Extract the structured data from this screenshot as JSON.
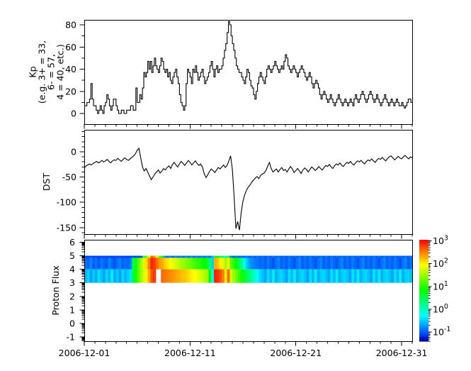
{
  "figure": {
    "background": "#ffffff",
    "line_color": "#000000",
    "x_axis": {
      "tick_labels": [
        "2006-12-01",
        "2006-12-11",
        "2006-12-21",
        "2006-12-31"
      ],
      "major_tick_days": [
        0,
        10,
        20,
        30
      ],
      "minor_tick_every_days": 1,
      "range_days": [
        0,
        31
      ]
    },
    "chart_data": [
      {
        "type": "line",
        "style": "step",
        "ylabel_lines": [
          "Kp",
          "(e.g. 3+ = 33,",
          "6- = 57,",
          "4 = 40, etc.)"
        ],
        "yticks": [
          0,
          20,
          40,
          60,
          80
        ],
        "y_minor_step": 10,
        "ylim": [
          -9.6,
          84.5
        ],
        "hours_per_sample": 3,
        "values": [
          7,
          7,
          10,
          10,
          13,
          27,
          13,
          7,
          7,
          3,
          0,
          3,
          7,
          3,
          0,
          7,
          10,
          17,
          13,
          7,
          3,
          7,
          13,
          13,
          7,
          3,
          0,
          0,
          3,
          3,
          0,
          0,
          3,
          3,
          3,
          7,
          7,
          3,
          3,
          23,
          10,
          10,
          17,
          13,
          23,
          37,
          33,
          37,
          47,
          40,
          47,
          37,
          43,
          50,
          43,
          40,
          37,
          43,
          50,
          47,
          40,
          37,
          40,
          33,
          37,
          30,
          27,
          33,
          37,
          40,
          33,
          27,
          17,
          10,
          7,
          3,
          7,
          27,
          40,
          37,
          33,
          27,
          40,
          37,
          43,
          37,
          30,
          33,
          37,
          40,
          33,
          27,
          30,
          33,
          37,
          43,
          47,
          40,
          33,
          40,
          43,
          37,
          40,
          40,
          43,
          50,
          57,
          63,
          73,
          83,
          80,
          70,
          63,
          57,
          50,
          43,
          40,
          37,
          37,
          33,
          30,
          27,
          33,
          40,
          37,
          30,
          25,
          23,
          17,
          13,
          20,
          27,
          33,
          37,
          33,
          30,
          27,
          33,
          40,
          43,
          40,
          37,
          40,
          43,
          47,
          43,
          40,
          37,
          40,
          43,
          40,
          47,
          53,
          50,
          43,
          40,
          37,
          40,
          43,
          40,
          37,
          33,
          37,
          40,
          43,
          40,
          37,
          33,
          30,
          33,
          37,
          33,
          27,
          23,
          27,
          30,
          27,
          23,
          17,
          13,
          17,
          20,
          17,
          13,
          10,
          13,
          17,
          13,
          10,
          7,
          10,
          13,
          17,
          13,
          10,
          7,
          10,
          13,
          10,
          7,
          10,
          13,
          10,
          7,
          13,
          17,
          13,
          10,
          13,
          17,
          20,
          17,
          13,
          10,
          13,
          17,
          20,
          17,
          13,
          10,
          13,
          17,
          13,
          10,
          7,
          10,
          13,
          17,
          13,
          10,
          7,
          10,
          13,
          10,
          7,
          10,
          13,
          10,
          7,
          7,
          10,
          7,
          5,
          7,
          10,
          13,
          13,
          10
        ]
      },
      {
        "type": "line",
        "style": "linear",
        "ylabel": "DST",
        "yticks": [
          0,
          -50,
          -100,
          -150
        ],
        "y_minor_step": 10,
        "ylim": [
          -163,
          43.5
        ],
        "hours_per_sample": 4,
        "values": [
          -32,
          -28,
          -26,
          -24,
          -26,
          -23,
          -21,
          -19,
          -22,
          -20,
          -17,
          -20,
          -18,
          -15,
          -19,
          -22,
          -18,
          -16,
          -17,
          -13,
          -16,
          -19,
          -15,
          -12,
          -15,
          -17,
          -14,
          -11,
          -8,
          -4,
          3,
          7,
          -12,
          -30,
          -38,
          -33,
          -40,
          -48,
          -55,
          -50,
          -44,
          -40,
          -36,
          -42,
          -38,
          -33,
          -36,
          -31,
          -28,
          -33,
          -25,
          -21,
          -26,
          -30,
          -24,
          -19,
          -23,
          -27,
          -22,
          -17,
          -21,
          -26,
          -22,
          -18,
          -23,
          -27,
          -24,
          -30,
          -43,
          -51,
          -46,
          -39,
          -34,
          -37,
          -41,
          -36,
          -31,
          -34,
          -30,
          -26,
          -31,
          -27,
          -18,
          -8,
          -35,
          -90,
          -152,
          -138,
          -155,
          -120,
          -98,
          -85,
          -76,
          -70,
          -66,
          -60,
          -56,
          -52,
          -49,
          -53,
          -47,
          -44,
          -42,
          -37,
          -29,
          -21,
          -33,
          -40,
          -37,
          -34,
          -40,
          -35,
          -31,
          -37,
          -35,
          -40,
          -34,
          -29,
          -34,
          -41,
          -37,
          -33,
          -38,
          -43,
          -36,
          -32,
          -35,
          -40,
          -35,
          -30,
          -33,
          -37,
          -34,
          -29,
          -33,
          -36,
          -31,
          -27,
          -29,
          -25,
          -30,
          -33,
          -27,
          -24,
          -26,
          -22,
          -27,
          -29,
          -24,
          -21,
          -23,
          -19,
          -24,
          -26,
          -21,
          -18,
          -20,
          -17,
          -21,
          -24,
          -19,
          -16,
          -18,
          -14,
          -18,
          -21,
          -16,
          -13,
          -15,
          -11,
          -15,
          -18,
          -13,
          -10,
          -8,
          -12,
          -16,
          -13,
          -9,
          -12,
          -14,
          -10,
          -7,
          -11,
          -14,
          -10,
          -12
        ]
      },
      {
        "type": "heatmap",
        "ylabel": "Proton Flux",
        "yticks": [
          -1,
          0,
          1,
          2,
          3,
          4,
          5,
          6
        ],
        "log_minor_ticks": true,
        "ylim": [
          -1.32,
          6.18
        ],
        "columns": 124,
        "hours_per_sample": 6,
        "value_scale": "log10_flux",
        "rows": [
          {
            "y0": 4,
            "y1": 5,
            "values": [
              -0.9,
              -1.0,
              -0.8,
              -1.0,
              -0.9,
              -1.05,
              -0.85,
              -0.95,
              -1.0,
              -0.8,
              -0.95,
              -1.05,
              -0.9,
              -0.8,
              -1.0,
              -0.9,
              -0.95,
              -0.85,
              0.5,
              0.9,
              1.2,
              1.5,
              1.8,
              2.1,
              2.5,
              2.9,
              2.8,
              2.6,
              2.4,
              2.3,
              2.15,
              2.05,
              1.95,
              1.85,
              1.75,
              1.65,
              1.55,
              1.5,
              1.4,
              1.3,
              1.25,
              1.15,
              1.05,
              1.0,
              0.9,
              0.8,
              0.7,
              0.3,
              -0.5,
              2.3,
              2.2,
              2.0,
              1.8,
              1.5,
              2.0,
              1.2,
              1.0,
              0.8,
              0.5,
              0.2,
              -0.2,
              -0.5,
              -0.7,
              -0.8,
              -0.85,
              -0.9,
              -0.95,
              -0.9,
              -1.0,
              -0.85,
              -0.95,
              -1.05,
              -0.9,
              -0.8,
              -1.0,
              -0.9,
              -1.0,
              -0.85,
              -0.95,
              -1.05,
              -0.9,
              -0.8,
              -1.0,
              -0.9,
              -1.0,
              -0.85,
              -0.95,
              -1.05,
              -0.9,
              -0.8,
              -1.0,
              -0.9,
              -1.0,
              -0.85,
              -0.95,
              -1.05,
              -0.9,
              -0.8,
              -1.0,
              -0.9,
              -1.0,
              -0.85,
              -0.95,
              -1.05,
              -0.9,
              -0.8,
              -1.0,
              -0.9,
              -1.0,
              -0.85,
              -0.95,
              -1.05,
              -0.9,
              -0.8,
              -1.0,
              -0.9,
              -1.0,
              -0.85,
              -0.95,
              -1.05,
              -0.9,
              -0.8,
              -1.0,
              -0.9
            ]
          },
          {
            "y0": 3,
            "y1": 4,
            "values": [
              -0.6,
              -0.45,
              -0.7,
              -0.5,
              -0.65,
              -0.4,
              -0.55,
              -0.7,
              -0.45,
              -0.6,
              -0.35,
              -0.65,
              -0.5,
              -0.7,
              -0.45,
              -0.6,
              -0.5,
              -0.4,
              0.6,
              0.9,
              1.2,
              1.5,
              1.8,
              2.0,
              2.3,
              2.7,
              2.8,
              null,
              null,
              2.6,
              2.55,
              2.5,
              2.45,
              2.4,
              2.35,
              2.3,
              2.25,
              2.2,
              2.15,
              2.1,
              2.0,
              1.95,
              1.9,
              1.8,
              1.7,
              1.6,
              1.5,
              0.8,
              -0.3,
              2.9,
              2.85,
              2.7,
              2.5,
              2.0,
              2.6,
              1.7,
              1.5,
              1.3,
              1.1,
              0.9,
              0.7,
              0.5,
              0.3,
              0.1,
              -0.1,
              -0.3,
              -0.45,
              -0.55,
              -0.7,
              -0.4,
              -0.6,
              -0.35,
              -0.65,
              -0.5,
              -0.45,
              -0.55,
              -0.7,
              -0.4,
              -0.6,
              -0.35,
              -0.65,
              -0.5,
              -0.45,
              -0.55,
              -0.7,
              -0.4,
              -0.6,
              -0.35,
              -0.65,
              -0.5,
              -0.45,
              -0.55,
              -0.7,
              -0.4,
              -0.6,
              -0.35,
              -0.65,
              -0.5,
              -0.45,
              -0.55,
              -0.7,
              -0.4,
              -0.6,
              -0.35,
              -0.65,
              -0.5,
              -0.45,
              -0.55,
              -0.7,
              -0.4,
              -0.6,
              -0.35,
              -0.65,
              -0.5,
              -0.45,
              -0.55,
              -0.7,
              -0.4,
              -0.6,
              -0.35,
              -0.65,
              -0.5,
              -0.45,
              -0.55
            ]
          },
          {
            "y0": 4.85,
            "y1": 5,
            "values": [
              -1.1,
              -1.1,
              -1.1,
              -1.1,
              -1.1,
              -1.1,
              -1.1,
              -1.1,
              -1.1,
              -1.1,
              -1.1,
              -1.1,
              -1.1,
              -1.1,
              -1.1,
              -1.1,
              -1.1,
              -1.1,
              -1.1,
              -1.1,
              -1.1,
              -1.1,
              0.5,
              1.2,
              2.0,
              2.6,
              2.4,
              1.8,
              1.2,
              0.8,
              -0.8,
              -0.95,
              -0.8,
              -0.95,
              -0.8,
              -0.95,
              -0.8,
              -0.95,
              -0.8,
              -0.95,
              -0.8,
              -0.95,
              -0.8,
              -0.95,
              -0.8,
              -0.95,
              -0.8,
              -0.95,
              -0.6,
              0.9,
              0.7,
              0.4,
              0.2,
              0.0,
              0.5,
              -0.9,
              -1.0,
              -0.9,
              -1.0,
              -0.9,
              -1.0,
              -0.9,
              -1.0,
              -0.9,
              -1.0,
              -0.9,
              -1.0,
              -0.9,
              -1.0,
              -0.9,
              -1.0,
              -0.9,
              -1.0,
              -0.9,
              -1.0,
              -0.9,
              -1.0,
              -0.9,
              -1.0,
              -0.9,
              -1.0,
              -0.9,
              -1.0,
              -0.9,
              -1.0,
              -0.9,
              -1.0,
              -0.9,
              -1.0,
              -0.9,
              -1.0,
              -0.9,
              -1.0,
              -0.9,
              -1.0,
              -0.9,
              -1.0,
              -0.9,
              -1.0,
              -0.9,
              -1.0,
              -0.9,
              -1.0,
              -0.9,
              -1.0,
              -0.9,
              -1.0,
              -0.9,
              -1.0,
              -0.9,
              -1.0,
              -0.9,
              -1.0,
              -0.9,
              -1.0,
              -0.9,
              -1.0,
              -0.9,
              -1.0,
              -0.9,
              -1.0,
              -0.9,
              -1.0,
              -0.9
            ]
          }
        ],
        "colorbar": {
          "base": "10",
          "exponents": [
            3,
            2,
            1,
            0,
            -1
          ],
          "vmin_log": -1.4,
          "vmax_log": 3.05,
          "colormap": "rainbow"
        }
      }
    ]
  }
}
